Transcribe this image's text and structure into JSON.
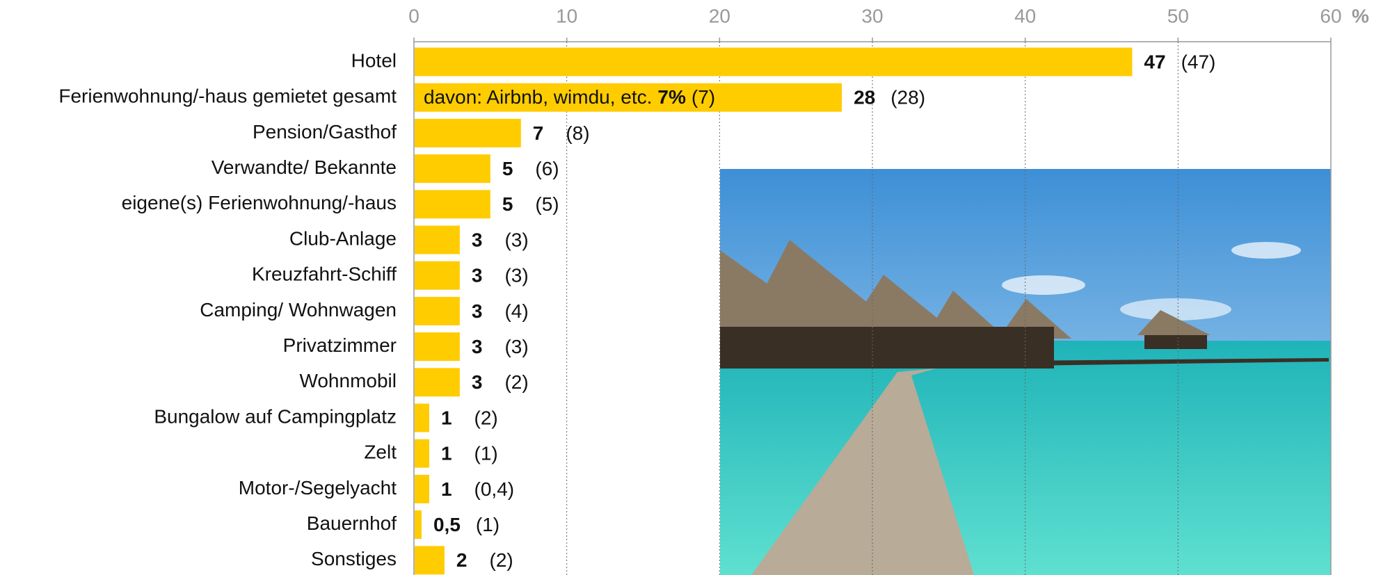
{
  "chart_data": {
    "type": "bar",
    "orientation": "horizontal",
    "categories": [
      "Hotel",
      "Ferienwohnung/-haus gemietet gesamt",
      "Pension/Gasthof",
      "Verwandte/ Bekannte",
      "eigene(s) Ferienwohnung/-haus",
      "Club-Anlage",
      "Kreuzfahrt-Schiff",
      "Camping/ Wohnwagen",
      "Privatzimmer",
      "Wohnmobil",
      "Bungalow auf Campingplatz",
      "Zelt",
      "Motor-/Segelyacht",
      "Bauernhof",
      "Sonstiges"
    ],
    "values": [
      47,
      28,
      7,
      5,
      5,
      3,
      3,
      3,
      3,
      3,
      1,
      1,
      1,
      0.5,
      2
    ],
    "value_labels": [
      "47",
      "28",
      "7",
      "5",
      "5",
      "3",
      "3",
      "3",
      "3",
      "3",
      "1",
      "1",
      "1",
      "0,5",
      "2"
    ],
    "color": "#ffcc00",
    "previous": {
      "values": [
        47,
        28,
        8,
        6,
        5,
        3,
        3,
        4,
        3,
        2,
        2,
        1,
        0.4,
        1,
        2
      ],
      "value_labels": [
        "(47)",
        "(28)",
        "(8)",
        "(6)",
        "(5)",
        "(3)",
        "(3)",
        "(4)",
        "(3)",
        "(2)",
        "(2)",
        "(1)",
        "(0,4)",
        "(1)",
        "(2)"
      ]
    },
    "annotation": {
      "text": "davon: Airbnb, wimdu, etc.",
      "value": 7,
      "value_label": "7%",
      "previous_value": 7,
      "previous_label": "(7)"
    },
    "xlim": [
      0,
      60
    ],
    "xticks": [
      0,
      10,
      20,
      30,
      40,
      50,
      60
    ],
    "x_unit": "%",
    "grid": true
  }
}
